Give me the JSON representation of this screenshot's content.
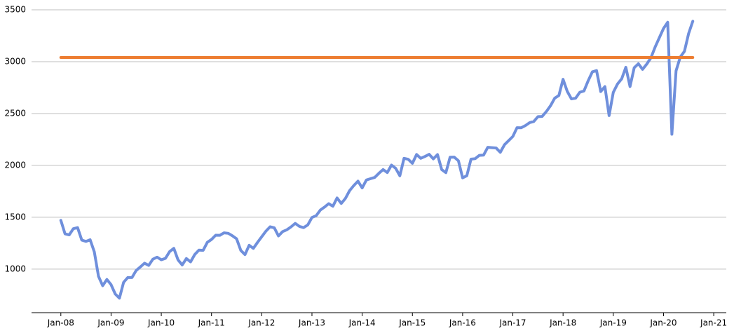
{
  "chart_data": {
    "type": "line",
    "series": [
      {
        "color": "#6f8fdc",
        "x": [
          "2008-01",
          "2008-02",
          "2008-03",
          "2008-04",
          "2008-05",
          "2008-06",
          "2008-07",
          "2008-08",
          "2008-09",
          "2008-10",
          "2008-11",
          "2008-12",
          "2009-01",
          "2009-02",
          "2009-03",
          "2009-04",
          "2009-05",
          "2009-06",
          "2009-07",
          "2009-08",
          "2009-09",
          "2009-10",
          "2009-11",
          "2009-12",
          "2010-01",
          "2010-02",
          "2010-03",
          "2010-04",
          "2010-05",
          "2010-06",
          "2010-07",
          "2010-08",
          "2010-09",
          "2010-10",
          "2010-11",
          "2010-12",
          "2011-01",
          "2011-02",
          "2011-03",
          "2011-04",
          "2011-05",
          "2011-06",
          "2011-07",
          "2011-08",
          "2011-09",
          "2011-10",
          "2011-11",
          "2011-12",
          "2012-01",
          "2012-02",
          "2012-03",
          "2012-04",
          "2012-05",
          "2012-06",
          "2012-07",
          "2012-08",
          "2012-09",
          "2012-10",
          "2012-11",
          "2012-12",
          "2013-01",
          "2013-02",
          "2013-03",
          "2013-04",
          "2013-05",
          "2013-06",
          "2013-07",
          "2013-08",
          "2013-09",
          "2013-10",
          "2013-11",
          "2013-12",
          "2014-01",
          "2014-02",
          "2014-03",
          "2014-04",
          "2014-05",
          "2014-06",
          "2014-07",
          "2014-08",
          "2014-09",
          "2014-10",
          "2014-11",
          "2014-12",
          "2015-01",
          "2015-02",
          "2015-03",
          "2015-04",
          "2015-05",
          "2015-06",
          "2015-07",
          "2015-08",
          "2015-09",
          "2015-10",
          "2015-11",
          "2015-12",
          "2016-01",
          "2016-02",
          "2016-03",
          "2016-04",
          "2016-05",
          "2016-06",
          "2016-07",
          "2016-08",
          "2016-09",
          "2016-10",
          "2016-11",
          "2016-12",
          "2017-01",
          "2017-02",
          "2017-03",
          "2017-04",
          "2017-05",
          "2017-06",
          "2017-07",
          "2017-08",
          "2017-09",
          "2017-10",
          "2017-11",
          "2017-12",
          "2018-01",
          "2018-02",
          "2018-03",
          "2018-04",
          "2018-05",
          "2018-06",
          "2018-07",
          "2018-08",
          "2018-09",
          "2018-10",
          "2018-11",
          "2018-12",
          "2019-01",
          "2019-02",
          "2019-03",
          "2019-04",
          "2019-05",
          "2019-06",
          "2019-07",
          "2019-08",
          "2019-09",
          "2019-10",
          "2019-11",
          "2019-12",
          "2020-01",
          "2020-02",
          "2020-03",
          "2020-04",
          "2020-05",
          "2020-06",
          "2020-07",
          "2020-08"
        ],
        "values": [
          1470,
          1340,
          1330,
          1390,
          1400,
          1280,
          1267,
          1283,
          1166,
          930,
          840,
          900,
          850,
          760,
          720,
          873,
          919,
          919,
          987,
          1021,
          1057,
          1036,
          1096,
          1115,
          1090,
          1104,
          1169,
          1200,
          1089,
          1040,
          1102,
          1070,
          1141,
          1183,
          1181,
          1258,
          1286,
          1327,
          1326,
          1350,
          1345,
          1321,
          1292,
          1180,
          1140,
          1230,
          1200,
          1258,
          1312,
          1366,
          1408,
          1398,
          1320,
          1362,
          1379,
          1407,
          1441,
          1412,
          1400,
          1426,
          1498,
          1515,
          1569,
          1598,
          1631,
          1606,
          1686,
          1633,
          1682,
          1757,
          1806,
          1848,
          1783,
          1859,
          1872,
          1884,
          1924,
          1960,
          1931,
          2003,
          1972,
          1900,
          2068,
          2059,
          2020,
          2105,
          2068,
          2086,
          2107,
          2063,
          2104,
          1960,
          1930,
          2079,
          2080,
          2044,
          1880,
          1900,
          2060,
          2065,
          2097,
          2099,
          2174,
          2171,
          2168,
          2126,
          2199,
          2239,
          2279,
          2364,
          2363,
          2384,
          2412,
          2423,
          2470,
          2472,
          2519,
          2575,
          2648,
          2674,
          2830,
          2714,
          2641,
          2648,
          2705,
          2718,
          2816,
          2902,
          2914,
          2712,
          2760,
          2480,
          2704,
          2784,
          2834,
          2946,
          2760,
          2942,
          2980,
          2926,
          2977,
          3038,
          3141,
          3231,
          3320,
          3380,
          2300,
          2912,
          3044,
          3100,
          3271,
          3390
        ]
      },
      {
        "color": "#ed7d31",
        "x": [
          "2008-01",
          "2020-08"
        ],
        "values": [
          3040,
          3040
        ]
      }
    ],
    "xlim": [
      "2007-06",
      "2021-04"
    ],
    "xticks": [
      {
        "value": "2008-01",
        "label": "Jan-08"
      },
      {
        "value": "2009-01",
        "label": "Jan-09"
      },
      {
        "value": "2010-01",
        "label": "Jan-10"
      },
      {
        "value": "2011-01",
        "label": "Jan-11"
      },
      {
        "value": "2012-01",
        "label": "Jan-12"
      },
      {
        "value": "2013-01",
        "label": "Jan-13"
      },
      {
        "value": "2014-01",
        "label": "Jan-14"
      },
      {
        "value": "2015-01",
        "label": "Jan-15"
      },
      {
        "value": "2016-01",
        "label": "Jan-16"
      },
      {
        "value": "2017-01",
        "label": "Jan-17"
      },
      {
        "value": "2018-01",
        "label": "Jan-18"
      },
      {
        "value": "2019-01",
        "label": "Jan-19"
      },
      {
        "value": "2020-01",
        "label": "Jan-20"
      },
      {
        "value": "2021-01",
        "label": "Jan-21"
      }
    ],
    "ylim": [
      580,
      3500
    ],
    "yticks": [
      1000,
      1500,
      2000,
      2500,
      3000,
      3500
    ],
    "grid": true
  }
}
